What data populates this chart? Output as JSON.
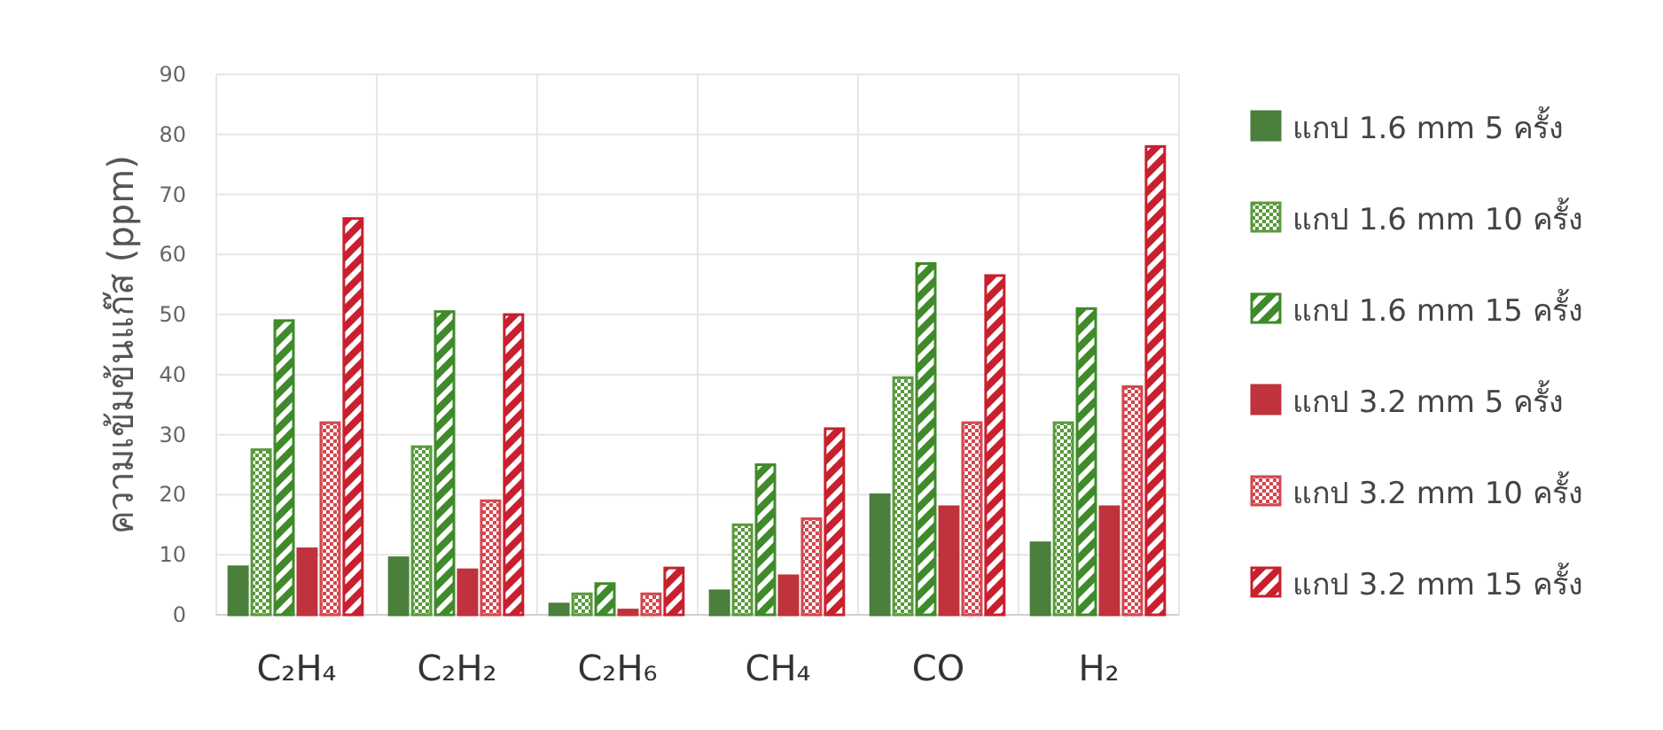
{
  "chart_data": {
    "type": "bar",
    "ylabel": "ความเข้มข้นแก๊ส (ppm)",
    "categories": [
      "C₂H₄",
      "C₂H₂",
      "C₂H₆",
      "CH₄",
      "CO",
      "H₂"
    ],
    "series": [
      {
        "name": "แกป 1.6 mm 5 ครั้ง",
        "color": "#4a7f3c",
        "values": [
          8,
          9.5,
          1.8,
          4,
          20,
          12
        ]
      },
      {
        "name": "แกป 1.6 mm 10 ครั้ง",
        "color": "#5a9a3c",
        "values": [
          27.5,
          28,
          3.5,
          15,
          39.5,
          32
        ]
      },
      {
        "name": "แกป 1.6 mm 15 ครั้ง",
        "color": "#3f8a2a",
        "values": [
          49,
          50.5,
          5.2,
          25,
          58.5,
          51
        ]
      },
      {
        "name": "แกป 3.2 mm 5 ครั้ง",
        "color": "#c0323c",
        "values": [
          11,
          7.5,
          0.8,
          6.5,
          18,
          18
        ]
      },
      {
        "name": "แกป 3.2 mm 10 ครั้ง",
        "color": "#d4474f",
        "values": [
          32,
          19,
          3.5,
          16,
          32,
          38
        ]
      },
      {
        "name": "แกป 3.2 mm 15 ครั้ง",
        "color": "#c8202e",
        "values": [
          66,
          50,
          7.8,
          31,
          56.5,
          78
        ]
      }
    ],
    "ylim": [
      0,
      90
    ],
    "yticks": [
      0,
      10,
      20,
      30,
      40,
      50,
      60,
      70,
      80,
      90
    ],
    "grid": true,
    "legend": "right"
  }
}
